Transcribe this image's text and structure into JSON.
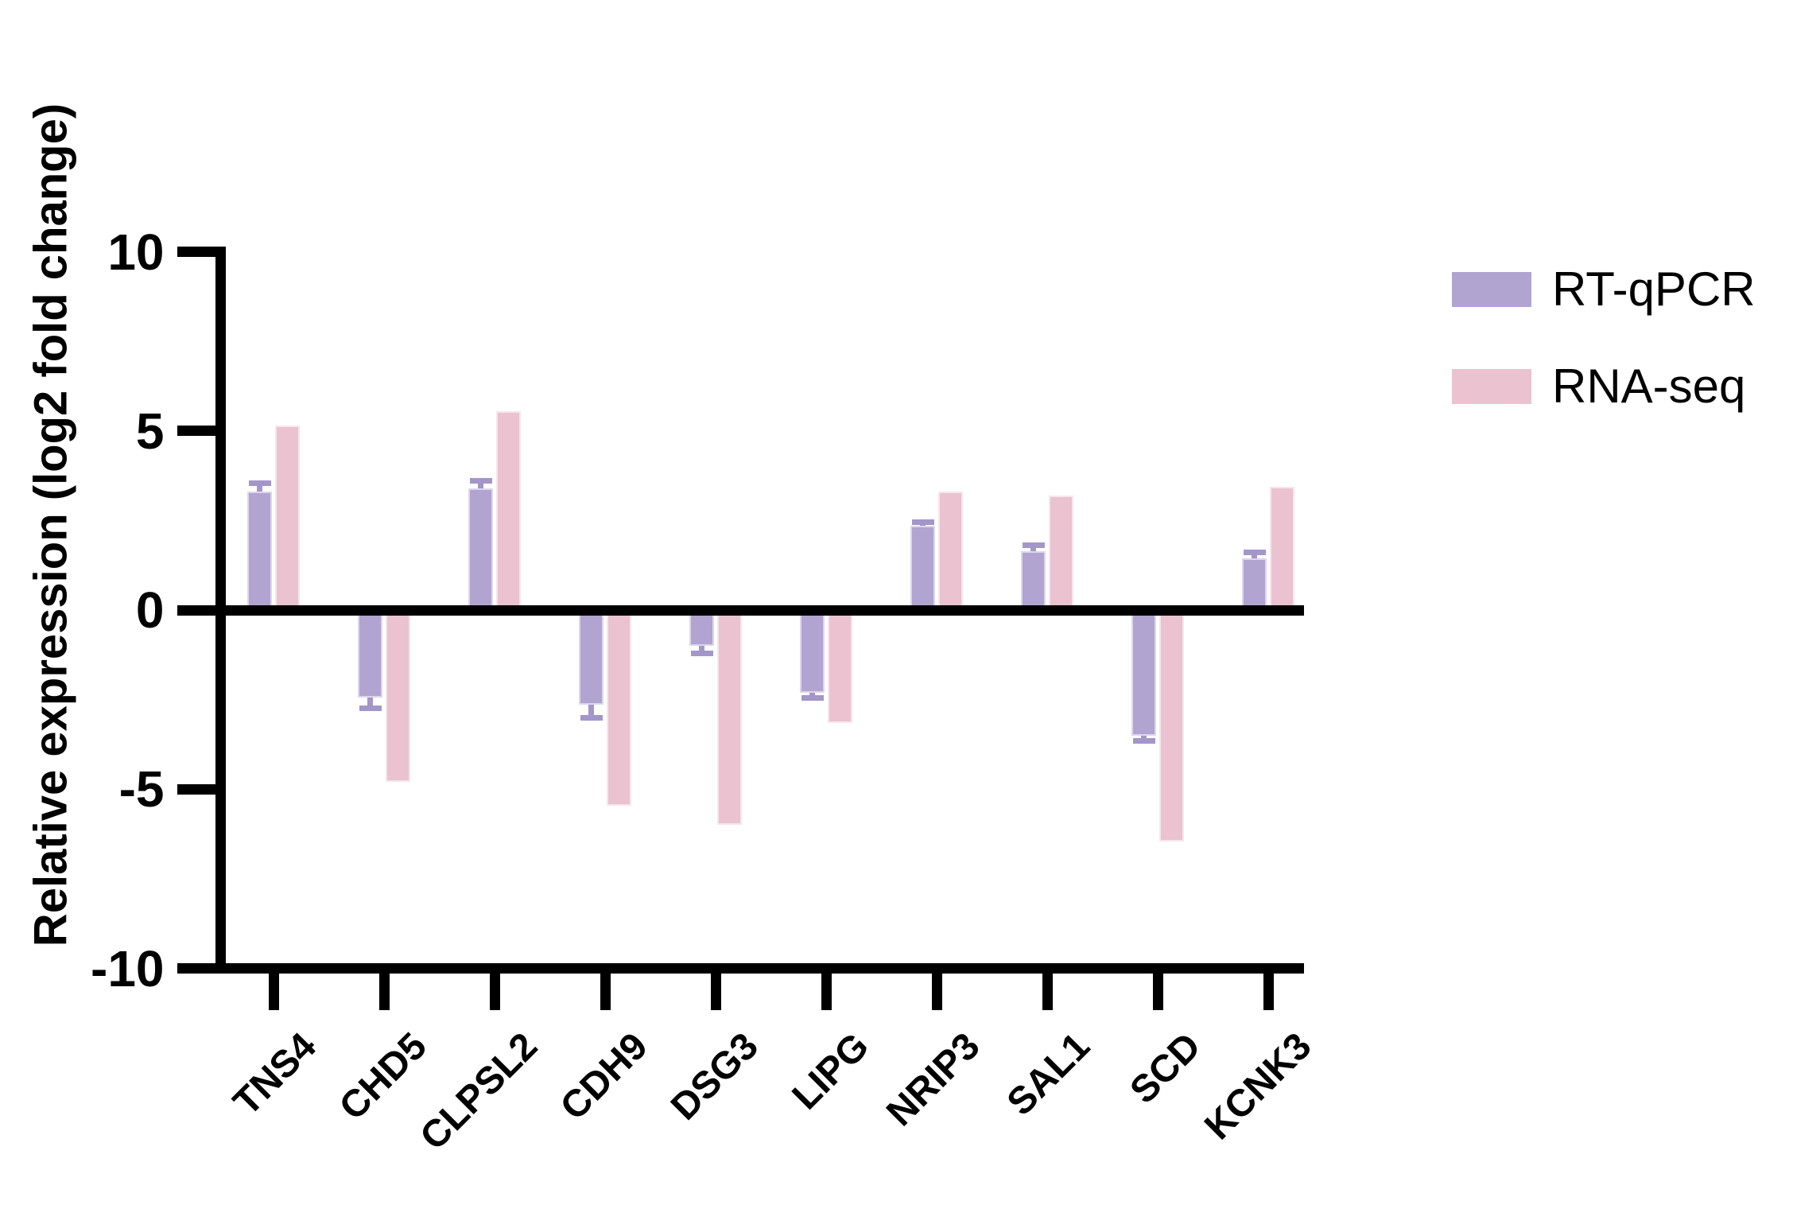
{
  "figure": {
    "background": "#ffffff",
    "axis_color": "#000000"
  },
  "chart_data": {
    "type": "bar",
    "title": "",
    "xlabel": "",
    "ylabel": "Relative expression (log2 fold change)",
    "categories": [
      "TNS4",
      "CHD5",
      "CLPSL2",
      "CDH9",
      "DSG3",
      "LIPG",
      "NRIP3",
      "SAL1",
      "SCD",
      "KCNK3"
    ],
    "series": [
      {
        "name": "RT-qPCR",
        "color": "#b2a4d1",
        "edge_color": "#ded6ec",
        "error_color": "#a396c8",
        "values": [
          3.3,
          -2.45,
          3.4,
          -2.65,
          -1.0,
          -2.3,
          2.35,
          1.65,
          -3.5,
          1.45
        ],
        "errors": [
          0.25,
          0.3,
          0.2,
          0.35,
          0.2,
          0.15,
          0.1,
          0.15,
          0.15,
          0.15
        ]
      },
      {
        "name": "RNA-seq",
        "color": "#eac2d0",
        "edge_color": "#f6e6ec",
        "values": [
          5.15,
          -4.8,
          5.55,
          -5.45,
          -6.0,
          -3.15,
          3.3,
          3.2,
          -6.45,
          3.45
        ]
      }
    ],
    "ylim": [
      -10,
      10
    ],
    "y_tick_values": [
      10,
      5,
      0,
      -5,
      -10
    ],
    "y_tick_labels": [
      "10",
      "5",
      "0",
      "-5",
      "-10"
    ],
    "grid": false,
    "legend_position": "upper right outside"
  }
}
